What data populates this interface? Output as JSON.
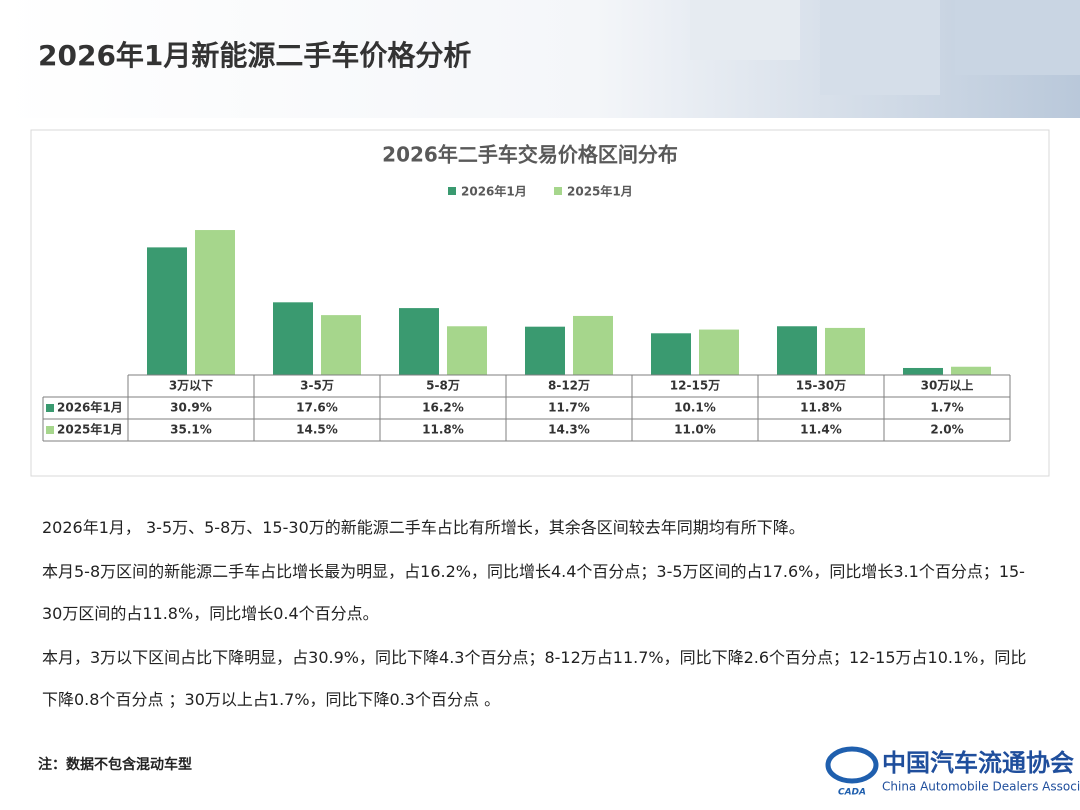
{
  "header": {
    "title": "2026年1月新能源二手车价格分析"
  },
  "chart_data": {
    "type": "bar",
    "title": "2026年二手车交易价格区间分布",
    "categories": [
      "3万以下",
      "3-5万",
      "5-8万",
      "8-12万",
      "12-15万",
      "15-30万",
      "30万以上"
    ],
    "series": [
      {
        "name": "2026年1月",
        "color": "#3a9a70",
        "values": [
          30.9,
          17.6,
          16.2,
          11.7,
          10.1,
          11.8,
          1.7
        ],
        "value_labels": [
          "30.9%",
          "17.6%",
          "16.2%",
          "11.7%",
          "10.1%",
          "11.8%",
          "1.7%"
        ]
      },
      {
        "name": "2025年1月",
        "color": "#a6d68c",
        "values": [
          35.1,
          14.5,
          11.8,
          14.3,
          11.0,
          11.4,
          2.0
        ],
        "value_labels": [
          "35.1%",
          "14.5%",
          "11.8%",
          "14.3%",
          "11.0%",
          "11.4%",
          "2.0%"
        ]
      }
    ]
  },
  "paragraphs": [
    "2026年1月， 3-5万、5-8万、15-30万的新能源二手车占比有所增长，其余各区间较去年同期均有所下降。",
    "本月5-8万区间的新能源二手车占比增长最为明显，占16.2%，同比增长4.4个百分点；3-5万区间的占17.6%，同比增长3.1个百分点；15-30万区间的占11.8%，同比增长0.4个百分点。",
    "本月，3万以下区间占比下降明显，占30.9%，同比下降4.3个百分点；8-12万占11.7%，同比下降2.6个百分点；12-15万占10.1%，同比下降0.8个百分点 ；30万以上占1.7%，同比下降0.3个百分点 。"
  ],
  "note": "注：数据不包含混动车型",
  "logo": {
    "mark": "CADA",
    "name": "中国汽车流通协会",
    "subtitle": "China Automobile Dealers Association"
  }
}
